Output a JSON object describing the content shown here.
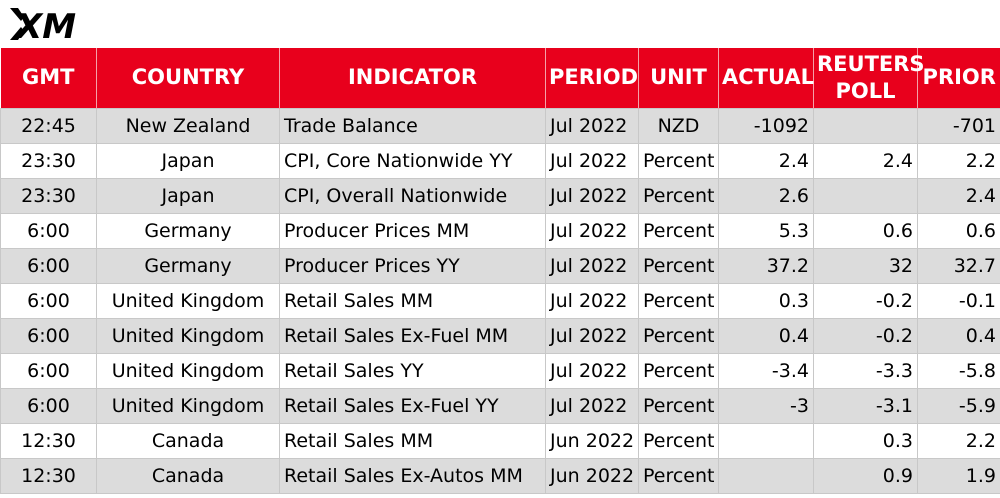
{
  "brand": {
    "logo_text": "XM",
    "accent_color": "#e8001c"
  },
  "table": {
    "headers": {
      "gmt": "GMT",
      "country": "COUNTRY",
      "indicator": "INDICATOR",
      "period": "PERIOD",
      "unit": "UNIT",
      "actual": "ACTUAL",
      "poll_line1": "REUTERS",
      "poll_line2": "POLL",
      "prior": "PRIOR"
    },
    "rows": [
      {
        "gmt": "22:45",
        "country": "New Zealand",
        "indicator": "Trade Balance",
        "period": "Jul 2022",
        "unit": "NZD",
        "actual": "-1092",
        "poll": "",
        "prior": "-701"
      },
      {
        "gmt": "23:30",
        "country": "Japan",
        "indicator": "CPI, Core Nationwide YY",
        "period": "Jul 2022",
        "unit": "Percent",
        "actual": "2.4",
        "poll": "2.4",
        "prior": "2.2"
      },
      {
        "gmt": "23:30",
        "country": "Japan",
        "indicator": "CPI, Overall Nationwide",
        "period": "Jul 2022",
        "unit": "Percent",
        "actual": "2.6",
        "poll": "",
        "prior": "2.4"
      },
      {
        "gmt": "6:00",
        "country": "Germany",
        "indicator": "Producer Prices MM",
        "period": "Jul 2022",
        "unit": "Percent",
        "actual": "5.3",
        "poll": "0.6",
        "prior": "0.6"
      },
      {
        "gmt": "6:00",
        "country": "Germany",
        "indicator": "Producer Prices YY",
        "period": "Jul 2022",
        "unit": "Percent",
        "actual": "37.2",
        "poll": "32",
        "prior": "32.7"
      },
      {
        "gmt": "6:00",
        "country": "United Kingdom",
        "indicator": "Retail Sales MM",
        "period": "Jul 2022",
        "unit": "Percent",
        "actual": "0.3",
        "poll": "-0.2",
        "prior": "-0.1"
      },
      {
        "gmt": "6:00",
        "country": "United Kingdom",
        "indicator": "Retail Sales Ex-Fuel MM",
        "period": "Jul 2022",
        "unit": "Percent",
        "actual": "0.4",
        "poll": "-0.2",
        "prior": "0.4"
      },
      {
        "gmt": "6:00",
        "country": "United Kingdom",
        "indicator": "Retail Sales YY",
        "period": "Jul 2022",
        "unit": "Percent",
        "actual": "-3.4",
        "poll": "-3.3",
        "prior": "-5.8"
      },
      {
        "gmt": "6:00",
        "country": "United Kingdom",
        "indicator": "Retail Sales Ex-Fuel YY",
        "period": "Jul 2022",
        "unit": "Percent",
        "actual": "-3",
        "poll": "-3.1",
        "prior": "-5.9"
      },
      {
        "gmt": "12:30",
        "country": "Canada",
        "indicator": "Retail Sales MM",
        "period": "Jun 2022",
        "unit": "Percent",
        "actual": "",
        "poll": "0.3",
        "prior": "2.2"
      },
      {
        "gmt": "12:30",
        "country": "Canada",
        "indicator": "Retail Sales Ex-Autos MM",
        "period": "Jun 2022",
        "unit": "Percent",
        "actual": "",
        "poll": "0.9",
        "prior": "1.9"
      }
    ]
  }
}
